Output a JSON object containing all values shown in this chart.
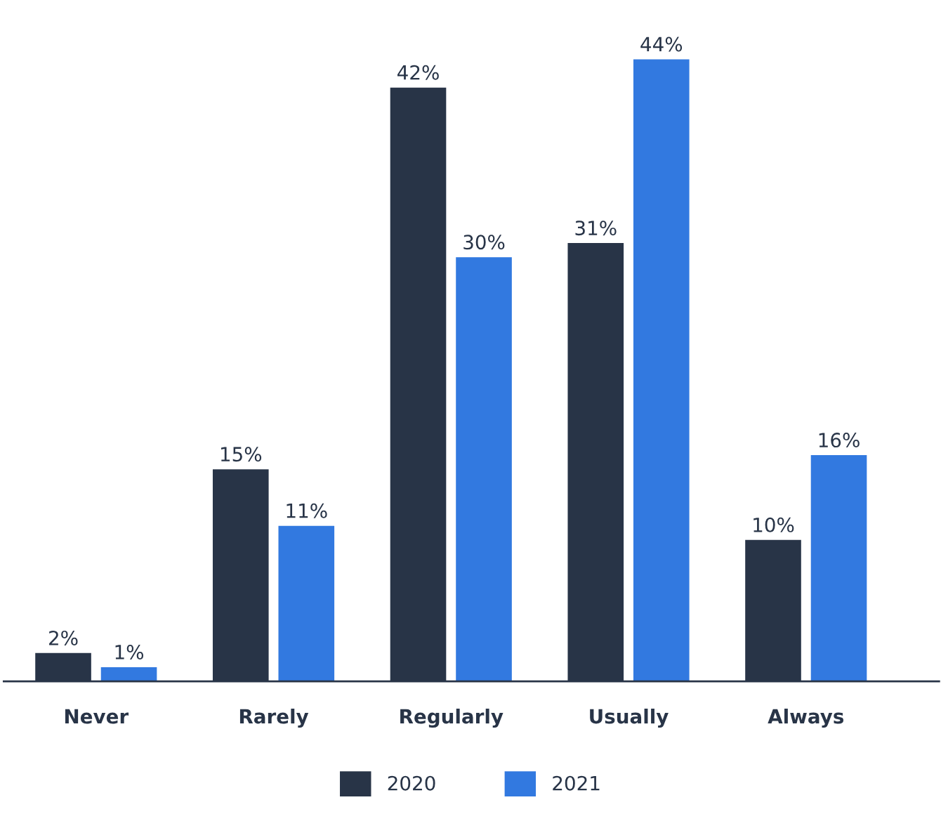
{
  "chart_data": {
    "type": "bar",
    "categories": [
      "Never",
      "Rarely",
      "Regularly",
      "Usually",
      "Always"
    ],
    "series": [
      {
        "name": "2020",
        "color": "#283447",
        "values": [
          2,
          15,
          42,
          31,
          10
        ],
        "value_labels": [
          "2%",
          "15%",
          "42%",
          "31%",
          "10%"
        ]
      },
      {
        "name": "2021",
        "color": "#3279e0",
        "values": [
          1,
          11,
          30,
          44,
          16
        ],
        "value_labels": [
          "1%",
          "11%",
          "30%",
          "44%",
          "16%"
        ]
      }
    ],
    "legend": "bottom",
    "grid": false,
    "tick_labels": "x"
  }
}
